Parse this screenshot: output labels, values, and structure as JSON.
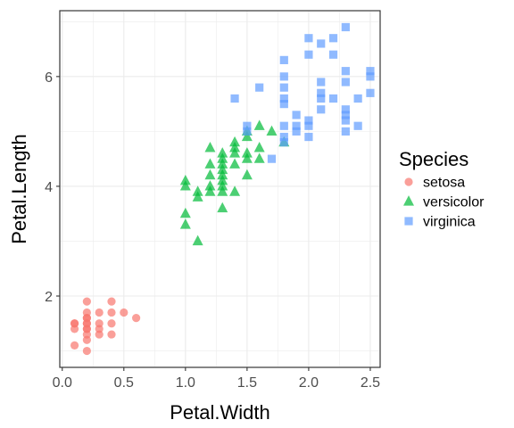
{
  "chart_data": {
    "type": "scatter",
    "xlabel": "Petal.Width",
    "ylabel": "Petal.Length",
    "xlim": [
      -0.02,
      2.58
    ],
    "ylim": [
      0.7,
      7.2
    ],
    "x_ticks": [
      "0.0",
      "0.5",
      "1.0",
      "1.5",
      "2.0",
      "2.5"
    ],
    "y_ticks": [
      "2",
      "4",
      "6"
    ],
    "grid": true,
    "legend": {
      "title": "Species",
      "placement": "right",
      "entries": [
        "setosa",
        "versicolor",
        "virginica"
      ]
    },
    "series": [
      {
        "name": "setosa",
        "color": "#F8766D",
        "shape": "circle",
        "points": [
          [
            0.1,
            1.1
          ],
          [
            0.1,
            1.4
          ],
          [
            0.1,
            1.5
          ],
          [
            0.1,
            1.5
          ],
          [
            0.2,
            1.0
          ],
          [
            0.2,
            1.2
          ],
          [
            0.2,
            1.3
          ],
          [
            0.2,
            1.4
          ],
          [
            0.2,
            1.4
          ],
          [
            0.2,
            1.5
          ],
          [
            0.2,
            1.5
          ],
          [
            0.2,
            1.6
          ],
          [
            0.2,
            1.6
          ],
          [
            0.2,
            1.7
          ],
          [
            0.2,
            1.9
          ],
          [
            0.3,
            1.3
          ],
          [
            0.3,
            1.4
          ],
          [
            0.3,
            1.5
          ],
          [
            0.3,
            1.7
          ],
          [
            0.4,
            1.3
          ],
          [
            0.4,
            1.5
          ],
          [
            0.4,
            1.7
          ],
          [
            0.4,
            1.9
          ],
          [
            0.5,
            1.7
          ],
          [
            0.6,
            1.6
          ]
        ]
      },
      {
        "name": "versicolor",
        "color": "#00BA38",
        "shape": "triangle",
        "points": [
          [
            1.0,
            3.3
          ],
          [
            1.0,
            3.5
          ],
          [
            1.0,
            4.0
          ],
          [
            1.0,
            4.1
          ],
          [
            1.1,
            3.0
          ],
          [
            1.1,
            3.8
          ],
          [
            1.1,
            3.9
          ],
          [
            1.2,
            3.9
          ],
          [
            1.2,
            4.0
          ],
          [
            1.2,
            4.2
          ],
          [
            1.2,
            4.4
          ],
          [
            1.2,
            4.7
          ],
          [
            1.3,
            3.6
          ],
          [
            1.3,
            3.9
          ],
          [
            1.3,
            4.0
          ],
          [
            1.3,
            4.1
          ],
          [
            1.3,
            4.2
          ],
          [
            1.3,
            4.3
          ],
          [
            1.3,
            4.4
          ],
          [
            1.3,
            4.5
          ],
          [
            1.3,
            4.6
          ],
          [
            1.4,
            3.9
          ],
          [
            1.4,
            4.4
          ],
          [
            1.4,
            4.6
          ],
          [
            1.4,
            4.7
          ],
          [
            1.4,
            4.8
          ],
          [
            1.5,
            4.2
          ],
          [
            1.5,
            4.5
          ],
          [
            1.5,
            4.6
          ],
          [
            1.5,
            4.9
          ],
          [
            1.5,
            5.0
          ],
          [
            1.6,
            4.5
          ],
          [
            1.6,
            4.7
          ],
          [
            1.6,
            5.1
          ],
          [
            1.7,
            5.0
          ],
          [
            1.8,
            4.8
          ]
        ]
      },
      {
        "name": "virginica",
        "color": "#619CFF",
        "shape": "square",
        "points": [
          [
            1.4,
            5.6
          ],
          [
            1.5,
            5.0
          ],
          [
            1.5,
            5.1
          ],
          [
            1.6,
            5.8
          ],
          [
            1.7,
            4.5
          ],
          [
            1.8,
            4.8
          ],
          [
            1.8,
            4.9
          ],
          [
            1.8,
            5.1
          ],
          [
            1.8,
            5.5
          ],
          [
            1.8,
            5.6
          ],
          [
            1.8,
            5.8
          ],
          [
            1.8,
            6.0
          ],
          [
            1.8,
            6.3
          ],
          [
            1.9,
            5.0
          ],
          [
            1.9,
            5.1
          ],
          [
            1.9,
            5.3
          ],
          [
            2.0,
            4.9
          ],
          [
            2.0,
            5.1
          ],
          [
            2.0,
            5.2
          ],
          [
            2.0,
            6.4
          ],
          [
            2.0,
            6.7
          ],
          [
            2.1,
            5.4
          ],
          [
            2.1,
            5.6
          ],
          [
            2.1,
            5.7
          ],
          [
            2.1,
            5.9
          ],
          [
            2.1,
            6.6
          ],
          [
            2.2,
            5.6
          ],
          [
            2.2,
            6.4
          ],
          [
            2.2,
            6.7
          ],
          [
            2.3,
            5.0
          ],
          [
            2.3,
            5.2
          ],
          [
            2.3,
            5.3
          ],
          [
            2.3,
            5.4
          ],
          [
            2.3,
            5.9
          ],
          [
            2.3,
            6.1
          ],
          [
            2.3,
            6.9
          ],
          [
            2.4,
            5.1
          ],
          [
            2.4,
            5.6
          ],
          [
            2.5,
            5.7
          ],
          [
            2.5,
            6.0
          ],
          [
            2.5,
            6.1
          ]
        ]
      }
    ]
  }
}
